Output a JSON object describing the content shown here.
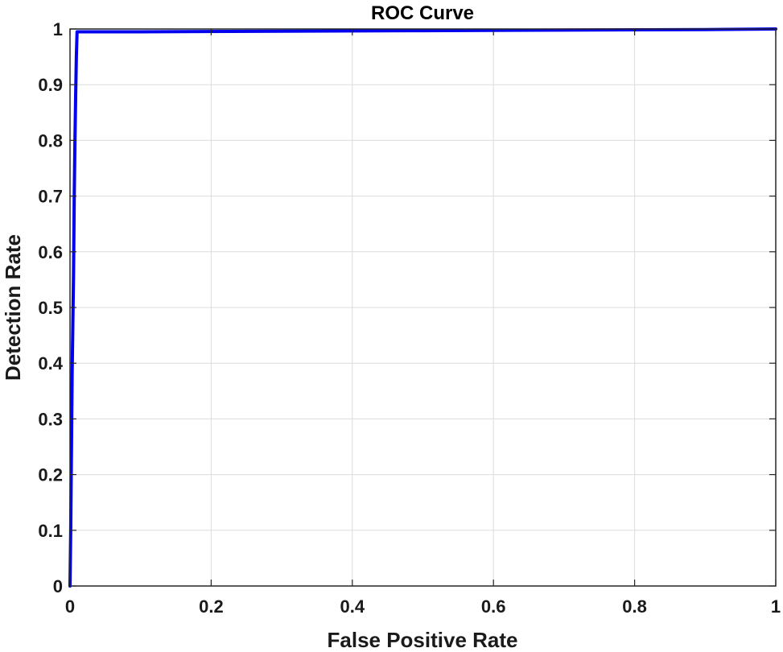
{
  "chart_data": {
    "type": "line",
    "title": "ROC Curve",
    "xlabel": "False Positive Rate",
    "ylabel": "Detection Rate",
    "xlim": [
      0,
      1
    ],
    "ylim": [
      0,
      1
    ],
    "grid": true,
    "x_ticks": [
      0,
      0.2,
      0.4,
      0.6,
      0.8,
      1
    ],
    "x_tick_labels": [
      "0",
      "0.2",
      "0.4",
      "0.6",
      "0.8",
      "1"
    ],
    "y_ticks": [
      0,
      0.1,
      0.2,
      0.3,
      0.4,
      0.5,
      0.6,
      0.7,
      0.8,
      0.9,
      1
    ],
    "y_tick_labels": [
      "0",
      "0.1",
      "0.2",
      "0.3",
      "0.4",
      "0.5",
      "0.6",
      "0.7",
      "0.8",
      "0.9",
      "1"
    ],
    "series": [
      {
        "name": "ROC",
        "color": "#0000ee",
        "x": [
          0,
          0.001,
          0.002,
          0.003,
          0.004,
          0.005,
          0.006,
          0.007,
          0.008,
          0.009,
          0.01,
          0.1,
          0.3,
          0.5,
          0.7,
          0.9,
          1.0
        ],
        "y": [
          0,
          0.1,
          0.24,
          0.38,
          0.47,
          0.56,
          0.7,
          0.8,
          0.88,
          0.95,
          0.995,
          0.995,
          0.996,
          0.997,
          0.998,
          0.999,
          1.0
        ]
      }
    ]
  }
}
